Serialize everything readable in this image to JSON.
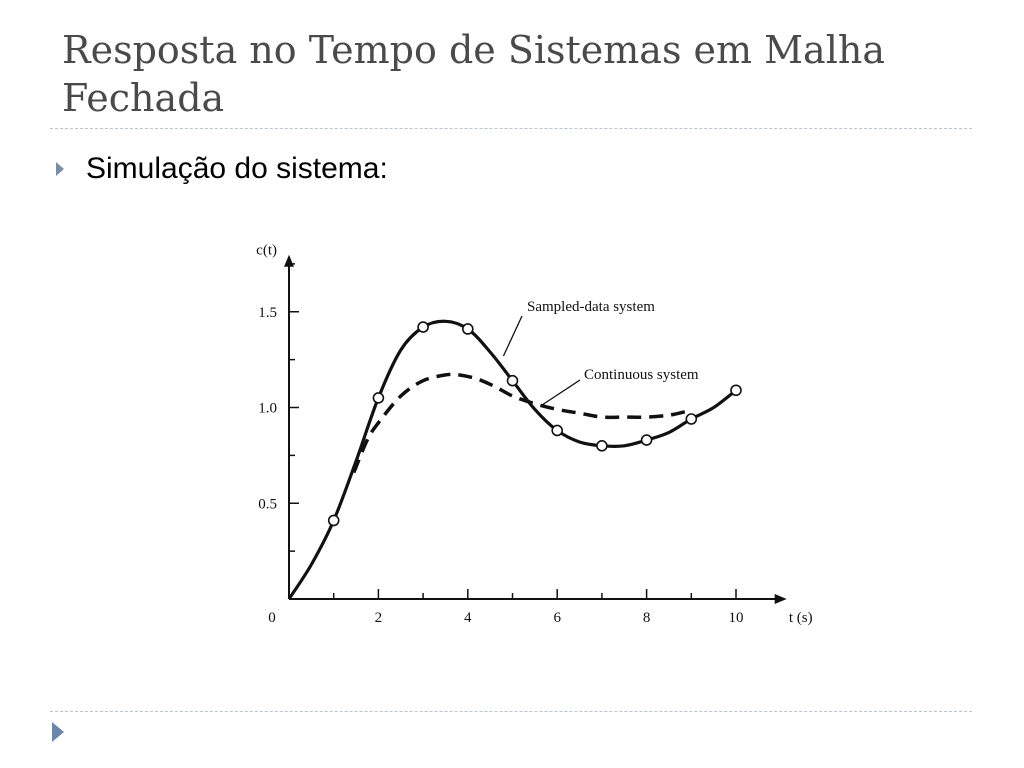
{
  "slide": {
    "title": "Resposta no Tempo de Sistemas em Malha Fechada",
    "bullet": "Simulação do sistema:",
    "accent_color": "#6a86aa",
    "icons": {
      "bullet": "triangle-right-icon",
      "footer": "triangle-right-icon"
    }
  },
  "chart_data": {
    "type": "line",
    "ylabel": "c(t)",
    "xlabel": "t (s)",
    "xlim": [
      0,
      11
    ],
    "ylim": [
      0,
      1.85
    ],
    "x_ticks": [
      0,
      2,
      4,
      6,
      8,
      10
    ],
    "x_tick_labels": [
      "0",
      "2",
      "4",
      "6",
      "8",
      "10"
    ],
    "y_ticks": [
      0.5,
      1.0,
      1.5
    ],
    "y_tick_labels": [
      "0.5",
      "1.0",
      "1.5"
    ],
    "grid": false,
    "series": [
      {
        "name": "Sampled-data system",
        "style": "solid",
        "x": [
          0,
          0.5,
          1,
          1.5,
          2,
          2.5,
          3,
          3.5,
          4,
          4.5,
          5,
          5.5,
          6,
          6.5,
          7,
          7.5,
          8,
          8.5,
          9,
          9.5,
          10
        ],
        "y": [
          0,
          0.18,
          0.41,
          0.72,
          1.05,
          1.3,
          1.42,
          1.45,
          1.41,
          1.29,
          1.14,
          0.99,
          0.88,
          0.82,
          0.8,
          0.8,
          0.83,
          0.87,
          0.94,
          1.0,
          1.09
        ],
        "markers": [
          {
            "x": 1,
            "y": 0.41
          },
          {
            "x": 2,
            "y": 1.05
          },
          {
            "x": 3,
            "y": 1.42
          },
          {
            "x": 4,
            "y": 1.41
          },
          {
            "x": 5,
            "y": 1.14
          },
          {
            "x": 6,
            "y": 0.88
          },
          {
            "x": 7,
            "y": 0.8
          },
          {
            "x": 8,
            "y": 0.83
          },
          {
            "x": 9,
            "y": 0.94
          },
          {
            "x": 10,
            "y": 1.09
          }
        ]
      },
      {
        "name": "Continuous system",
        "style": "dashed",
        "x": [
          1.45,
          1.75,
          2,
          2.5,
          3,
          3.5,
          3.8,
          4.2,
          4.6,
          5,
          5.5,
          6,
          6.5,
          7,
          7.5,
          8,
          8.5,
          8.9
        ],
        "y": [
          0.66,
          0.83,
          0.92,
          1.06,
          1.14,
          1.17,
          1.17,
          1.15,
          1.11,
          1.06,
          1.02,
          0.99,
          0.97,
          0.95,
          0.95,
          0.95,
          0.96,
          0.98
        ]
      }
    ],
    "annotations": [
      {
        "text": "Sampled-data system",
        "points_to_x": 4.35
      },
      {
        "text": "Continuous system",
        "points_to_x": 5.6
      }
    ]
  }
}
